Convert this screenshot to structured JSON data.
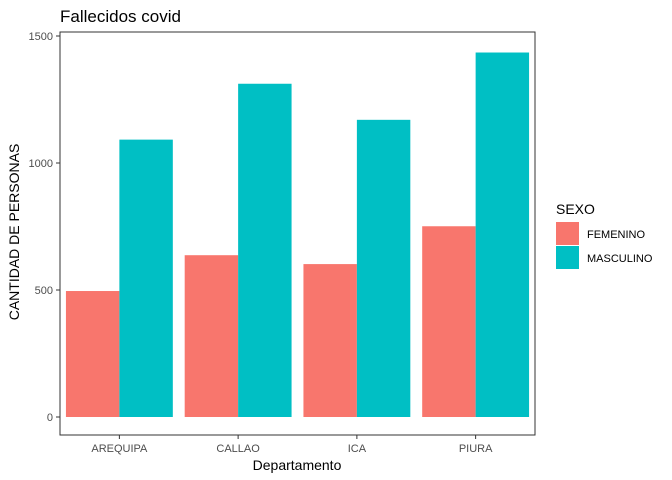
{
  "chart_data": {
    "type": "bar",
    "title": "Fallecidos covid",
    "xlabel": "Departamento",
    "ylabel": "CANTIDAD DE PERSONAS",
    "categories": [
      "AREQUIPA",
      "CALLAO",
      "ICA",
      "PIURA"
    ],
    "series": [
      {
        "name": "FEMENINO",
        "color": "#F8766D",
        "values": [
          496,
          637,
          602,
          751
        ]
      },
      {
        "name": "MASCULINO",
        "color": "#00BFC4",
        "values": [
          1092,
          1312,
          1170,
          1435
        ]
      }
    ],
    "ylim": [
      0,
      1500
    ],
    "yticks": [
      0,
      500,
      1000,
      1500
    ],
    "grid": false,
    "legend": {
      "title": "SEXO",
      "position": "right"
    }
  }
}
